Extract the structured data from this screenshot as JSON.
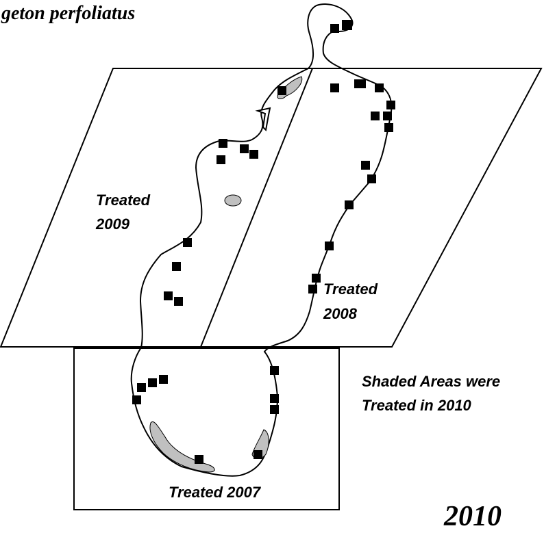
{
  "title": "geton perfoliatus",
  "regions": [
    {
      "lines": [
        "Treated",
        "2009"
      ]
    },
    {
      "lines": [
        "Treated",
        "2008"
      ]
    },
    {
      "lines": [
        "Treated 2007"
      ]
    }
  ],
  "note": {
    "lines": [
      "Shaded Areas were",
      "Treated in 2010"
    ]
  },
  "year": "2010"
}
